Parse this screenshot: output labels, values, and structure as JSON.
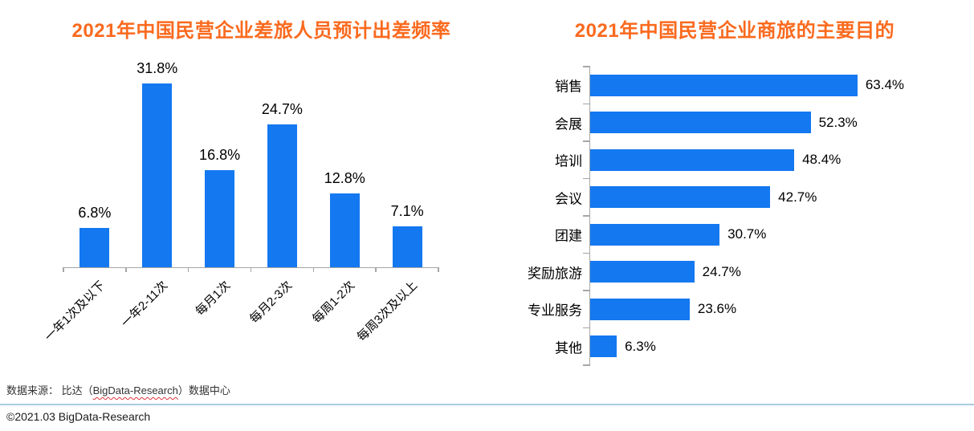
{
  "colors": {
    "bar_blue": "#1478F0",
    "title_orange": "#FA6A1E",
    "axis_gray": "#A6A6A6",
    "divider_blue": "#A9CBDD",
    "squiggle_red": "#E0333C",
    "label_black": "#000000"
  },
  "chart_data": [
    {
      "type": "bar",
      "orientation": "vertical",
      "title": "2021年中国民营企业差旅人员预计出差频率",
      "categories": [
        "一年1次及以下",
        "一年2-11次",
        "每月1次",
        "每月2-3次",
        "每周1-2次",
        "每周3次及以上"
      ],
      "values": [
        6.8,
        31.8,
        16.8,
        24.7,
        12.8,
        7.1
      ],
      "data_labels": [
        "6.8%",
        "31.8%",
        "16.8%",
        "24.7%",
        "12.8%",
        "7.1%"
      ],
      "unit": "%",
      "ylim": [
        0,
        35
      ],
      "grid": false,
      "legend": false
    },
    {
      "type": "bar",
      "orientation": "horizontal",
      "title": "2021年中国民营企业商旅的主要目的",
      "categories": [
        "销售",
        "会展",
        "培训",
        "会议",
        "团建",
        "奖励旅游",
        "专业服务",
        "其他"
      ],
      "values": [
        63.4,
        52.3,
        48.4,
        42.7,
        30.7,
        24.7,
        23.6,
        6.3
      ],
      "data_labels": [
        "63.4%",
        "52.3%",
        "48.4%",
        "42.7%",
        "30.7%",
        "24.7%",
        "23.6%",
        "6.3%"
      ],
      "unit": "%",
      "xlim": [
        0,
        70
      ],
      "grid": false,
      "legend": false
    }
  ],
  "footer": {
    "source_prefix": "数据来源： 比达（",
    "source_brand": "BigData-Research",
    "source_suffix": "）数据中心",
    "copyright": "©2021.03 BigData-Research"
  }
}
